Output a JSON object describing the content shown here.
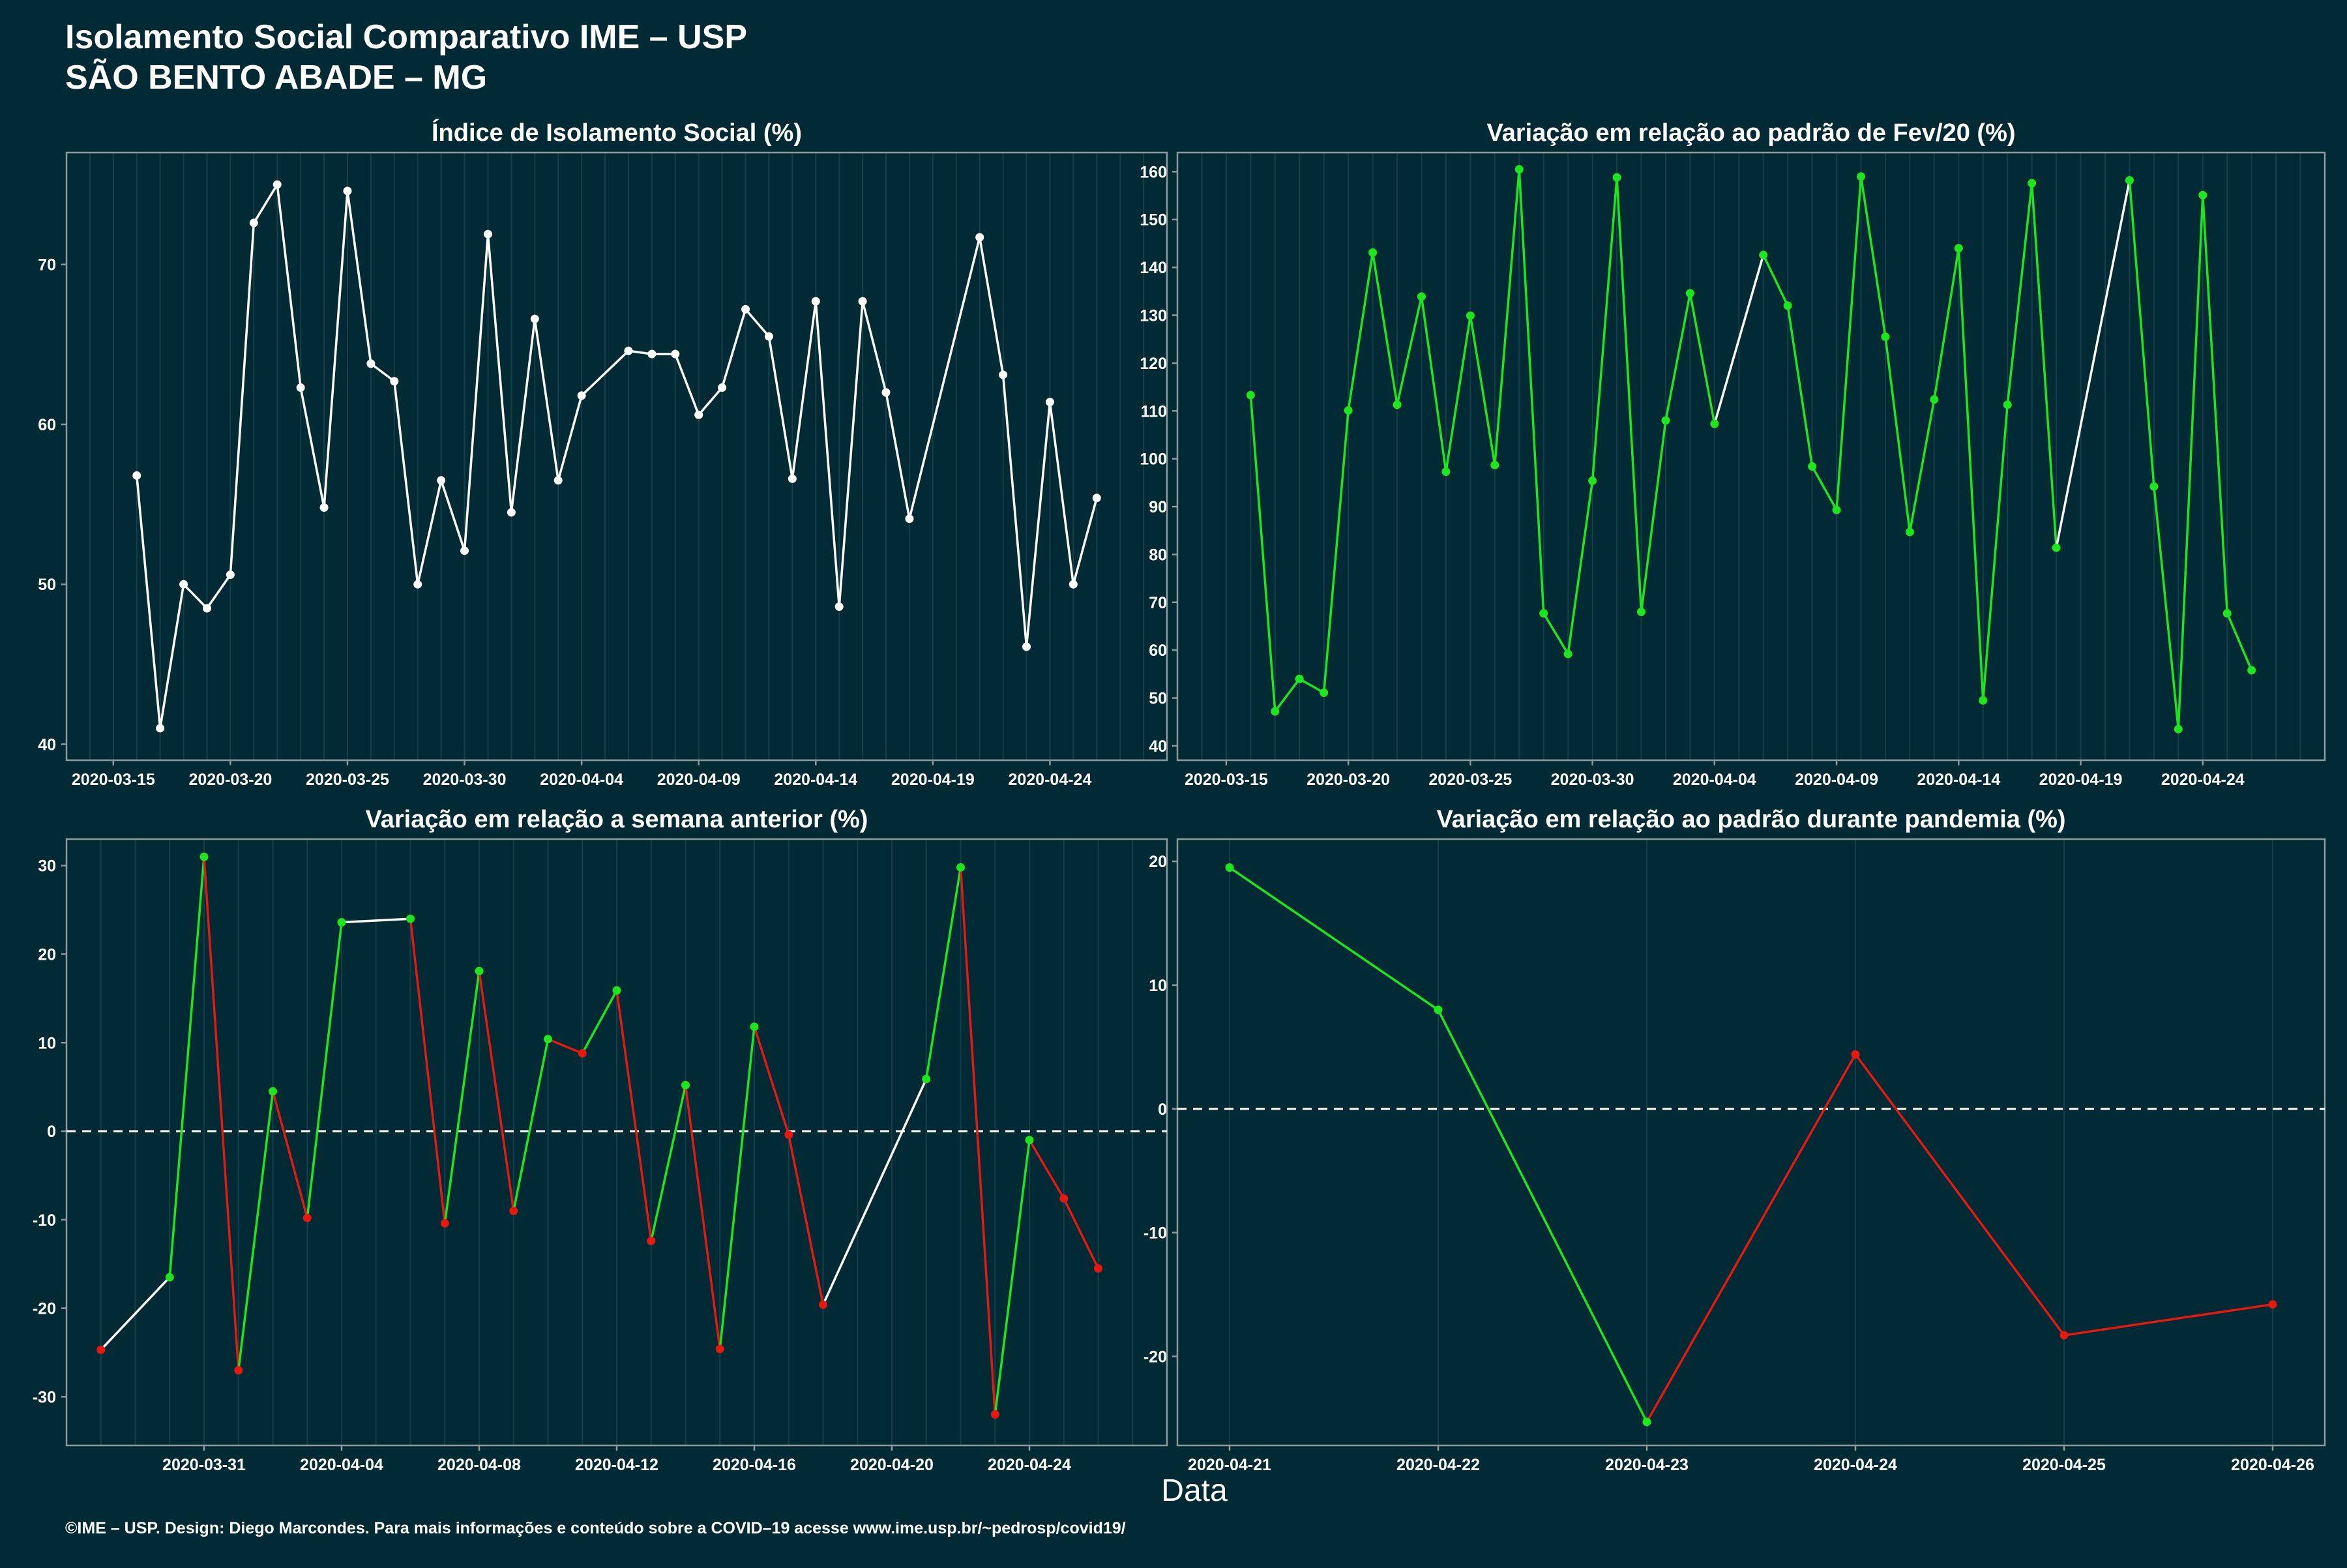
{
  "header": {
    "title_line1": "Isolamento Social Comparativo IME – USP",
    "title_line2": "SÃO BENTO ABADE – MG"
  },
  "footer": {
    "credit": "©IME – USP. Design: Diego Marcondes. Para mais informações e conteúdo sobre a COVID–19 acesse www.ime.usp.br/~pedrosp/covid19/",
    "xlabel": "Data"
  },
  "colors": {
    "background": "#022a35",
    "panel": "#022a35",
    "grid": "#173f49",
    "axis": "#8a9a9e",
    "text": "#ffffff",
    "line_white": "#ffffff",
    "up": "#1ee51e",
    "down": "#e5190f"
  },
  "chart_data": [
    {
      "type": "line",
      "title": "Índice de Isolamento Social (%)",
      "color_mode": "white",
      "xlim": [
        "2020-03-13",
        "2020-04-29"
      ],
      "ylim": [
        39,
        77
      ],
      "x_ticks": [
        "2020-03-15",
        "2020-03-20",
        "2020-03-25",
        "2020-03-30",
        "2020-04-04",
        "2020-04-09",
        "2020-04-14",
        "2020-04-19",
        "2020-04-24"
      ],
      "y_ticks": [
        40,
        50,
        60,
        70
      ],
      "x": [
        "2020-03-16",
        "2020-03-17",
        "2020-03-18",
        "2020-03-19",
        "2020-03-20",
        "2020-03-21",
        "2020-03-22",
        "2020-03-23",
        "2020-03-24",
        "2020-03-25",
        "2020-03-26",
        "2020-03-27",
        "2020-03-28",
        "2020-03-29",
        "2020-03-30",
        "2020-03-31",
        "2020-04-01",
        "2020-04-02",
        "2020-04-03",
        "2020-04-04",
        "2020-04-06",
        "2020-04-07",
        "2020-04-08",
        "2020-04-09",
        "2020-04-10",
        "2020-04-11",
        "2020-04-12",
        "2020-04-13",
        "2020-04-14",
        "2020-04-15",
        "2020-04-16",
        "2020-04-17",
        "2020-04-18",
        "2020-04-21",
        "2020-04-22",
        "2020-04-23",
        "2020-04-24",
        "2020-04-25",
        "2020-04-26"
      ],
      "values": [
        56.8,
        41.0,
        50.0,
        48.5,
        50.6,
        72.6,
        75.0,
        62.3,
        54.8,
        74.6,
        63.8,
        62.7,
        50.0,
        56.5,
        52.1,
        71.9,
        54.5,
        66.6,
        56.5,
        61.8,
        64.6,
        64.4,
        64.4,
        60.6,
        62.3,
        67.2,
        65.5,
        56.6,
        67.7,
        48.6,
        67.7,
        62.0,
        54.1,
        71.7,
        63.1,
        46.1,
        61.4,
        50.0,
        55.4
      ]
    },
    {
      "type": "line",
      "title": "Variação em relação ao padrão de Fev/20 (%)",
      "color_mode": "green_gap",
      "xlim": [
        "2020-03-13",
        "2020-04-29"
      ],
      "ylim": [
        37,
        164
      ],
      "x_ticks": [
        "2020-03-15",
        "2020-03-20",
        "2020-03-25",
        "2020-03-30",
        "2020-04-04",
        "2020-04-09",
        "2020-04-14",
        "2020-04-19",
        "2020-04-24"
      ],
      "y_ticks": [
        40,
        50,
        60,
        70,
        80,
        90,
        100,
        110,
        120,
        130,
        140,
        150,
        160
      ],
      "x": [
        "2020-03-16",
        "2020-03-17",
        "2020-03-18",
        "2020-03-19",
        "2020-03-20",
        "2020-03-21",
        "2020-03-22",
        "2020-03-23",
        "2020-03-24",
        "2020-03-25",
        "2020-03-26",
        "2020-03-27",
        "2020-03-28",
        "2020-03-29",
        "2020-03-30",
        "2020-03-31",
        "2020-04-01",
        "2020-04-02",
        "2020-04-03",
        "2020-04-04",
        "2020-04-06",
        "2020-04-07",
        "2020-04-08",
        "2020-04-09",
        "2020-04-10",
        "2020-04-11",
        "2020-04-12",
        "2020-04-13",
        "2020-04-14",
        "2020-04-15",
        "2020-04-16",
        "2020-04-17",
        "2020-04-18",
        "2020-04-21",
        "2020-04-22",
        "2020-04-23",
        "2020-04-24",
        "2020-04-25",
        "2020-04-26"
      ],
      "values": [
        113.3,
        47.2,
        54.0,
        51.1,
        110.1,
        143.1,
        111.3,
        133.9,
        97.3,
        129.9,
        98.7,
        160.5,
        67.7,
        59.2,
        95.4,
        158.8,
        68.0,
        108.0,
        134.6,
        107.3,
        142.6,
        132.0,
        98.4,
        89.3,
        159.0,
        125.5,
        84.7,
        112.4,
        144.0,
        49.5,
        111.3,
        157.6,
        81.4,
        158.2,
        94.2,
        43.5,
        155.1,
        67.7,
        55.8
      ]
    },
    {
      "type": "line",
      "title": "Variação em relação a semana anterior (%)",
      "color_mode": "updown",
      "xlim": [
        "2020-03-27",
        "2020-04-28"
      ],
      "ylim": [
        -35.5,
        33
      ],
      "hline": 0,
      "x_ticks": [
        "2020-03-31",
        "2020-04-04",
        "2020-04-08",
        "2020-04-12",
        "2020-04-16",
        "2020-04-20",
        "2020-04-24"
      ],
      "y_ticks": [
        -30,
        -20,
        -10,
        0,
        10,
        20,
        30
      ],
      "x": [
        "2020-03-28",
        "2020-03-30",
        "2020-03-31",
        "2020-04-01",
        "2020-04-02",
        "2020-04-03",
        "2020-04-04",
        "2020-04-06",
        "2020-04-07",
        "2020-04-08",
        "2020-04-09",
        "2020-04-10",
        "2020-04-11",
        "2020-04-12",
        "2020-04-13",
        "2020-04-14",
        "2020-04-15",
        "2020-04-16",
        "2020-04-17",
        "2020-04-18",
        "2020-04-21",
        "2020-04-22",
        "2020-04-23",
        "2020-04-24",
        "2020-04-25",
        "2020-04-26"
      ],
      "values": [
        -24.7,
        -16.5,
        31.0,
        -27.0,
        4.5,
        -9.8,
        23.6,
        24.0,
        -10.4,
        18.1,
        -9.0,
        10.4,
        8.8,
        15.9,
        -12.4,
        5.2,
        -24.6,
        11.8,
        -0.4,
        -19.6,
        5.9,
        29.8,
        -32.0,
        -1.0,
        -7.6,
        -15.5
      ],
      "point_colors": [
        "down",
        "up",
        "up",
        "down",
        "up",
        "down",
        "up",
        "up",
        "down",
        "up",
        "down",
        "up",
        "down",
        "up",
        "down",
        "up",
        "down",
        "up",
        "down",
        "down",
        "up",
        "up",
        "down",
        "up",
        "down",
        "down"
      ]
    },
    {
      "type": "line",
      "title": "Variação em relação ao padrão durante pandemia (%)",
      "color_mode": "updown",
      "xlim": [
        "2020-04-20 18:00",
        "2020-04-26 06:00"
      ],
      "ylim": [
        -27.2,
        21.8
      ],
      "hline": 0,
      "x_ticks": [
        "2020-04-21",
        "2020-04-22",
        "2020-04-23",
        "2020-04-24",
        "2020-04-25",
        "2020-04-26"
      ],
      "y_ticks": [
        -20,
        -10,
        0,
        10,
        20
      ],
      "x": [
        "2020-04-21",
        "2020-04-22",
        "2020-04-23",
        "2020-04-24",
        "2020-04-25",
        "2020-04-26"
      ],
      "values": [
        19.5,
        8.0,
        -25.3,
        4.4,
        -18.3,
        -15.8
      ],
      "point_colors": [
        "up",
        "up",
        "up",
        "down",
        "down",
        "down"
      ]
    }
  ]
}
